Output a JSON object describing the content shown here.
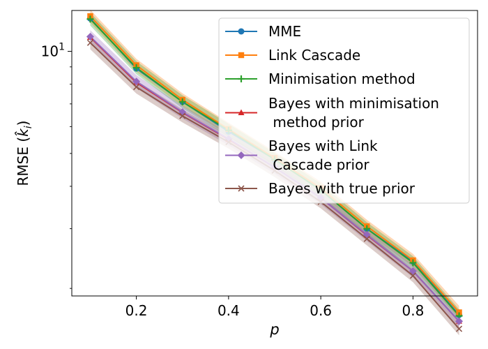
{
  "chart_data": {
    "type": "line",
    "title": "",
    "xlabel": "p",
    "ylabel": "RMSE (k̂ᵢ)",
    "ylabel_parts": {
      "prefix": "RMSE (",
      "symbol": "k",
      "subscript": "i",
      "suffix": ")"
    },
    "xscale": "linear",
    "yscale": "log",
    "xlim": [
      0.06,
      0.94
    ],
    "ylim": [
      1.9,
      13.2
    ],
    "xticks": [
      0.2,
      0.4,
      0.6,
      0.8
    ],
    "xtick_labels": [
      "0.2",
      "0.4",
      "0.6",
      "0.8"
    ],
    "yticks_major": [
      10
    ],
    "ytick_major_label_base": "10",
    "ytick_major_label_exp": "1",
    "yticks_minor": [
      2,
      3,
      4,
      5,
      6,
      7,
      8,
      9
    ],
    "legend_position": "top-right",
    "x": [
      0.1,
      0.2,
      0.3,
      0.4,
      0.5,
      0.6,
      0.7,
      0.8,
      0.9
    ],
    "series": [
      {
        "name": "MME",
        "color": "#1f77b4",
        "marker": "circle",
        "values": [
          12.5,
          8.9,
          7.1,
          5.8,
          4.8,
          3.9,
          3.0,
          2.4,
          1.67
        ]
      },
      {
        "name": "Link Cascade",
        "color": "#ff7f0e",
        "marker": "square",
        "values": [
          12.7,
          9.1,
          7.2,
          5.9,
          4.85,
          3.95,
          3.05,
          2.42,
          1.7
        ],
        "band": true
      },
      {
        "name": "Minimisation method",
        "color": "#2ca02c",
        "marker": "plus",
        "values": [
          12.45,
          8.95,
          7.1,
          5.85,
          4.8,
          3.9,
          3.0,
          2.38,
          1.66
        ],
        "band": true
      },
      {
        "name": "Bayes with minimisation\n method prior",
        "color": "#d62728",
        "marker": "triangle",
        "values": [
          11.0,
          8.1,
          6.6,
          5.5,
          4.55,
          3.7,
          2.87,
          2.25,
          1.6
        ]
      },
      {
        "name": "Bayes with Link\n Cascade prior",
        "color": "#9467bd",
        "marker": "diamond",
        "values": [
          11.05,
          8.15,
          6.62,
          5.52,
          4.55,
          3.7,
          2.88,
          2.25,
          1.6
        ],
        "band": true
      },
      {
        "name": "Bayes with true prior",
        "color": "#8c564b",
        "marker": "x",
        "values": [
          10.6,
          7.85,
          6.45,
          5.4,
          4.45,
          3.6,
          2.8,
          2.18,
          1.52
        ],
        "band": true
      }
    ]
  }
}
